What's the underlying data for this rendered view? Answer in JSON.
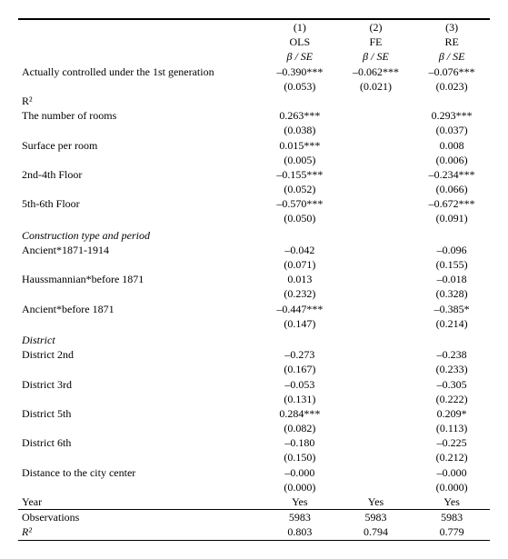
{
  "columns": {
    "c1": {
      "num": "(1)",
      "est": "OLS",
      "stat": "β / SE"
    },
    "c2": {
      "num": "(2)",
      "est": "FE",
      "stat": "β / SE"
    },
    "c3": {
      "num": "(3)",
      "est": "RE",
      "stat": "β / SE"
    }
  },
  "rows": {
    "r1": {
      "label": "Actually controlled under the 1st generation",
      "b1": "–0.390***",
      "s1": "(0.053)",
      "b2": "–0.062***",
      "s2": "(0.021)",
      "b3": "–0.076***",
      "s3": "(0.023)"
    },
    "r2": {
      "label": "R²",
      "v1": "0.803",
      "v2": "0.794",
      "v3": "0.779"
    },
    "r3": {
      "label": "The number of rooms",
      "b1": " 0.263***",
      "s1": "(0.038)",
      "b2": "",
      "s2": "",
      "b3": " 0.293***",
      "s3": "(0.037)"
    },
    "r4": {
      "label": "Surface per room",
      "b1": " 0.015***",
      "s1": "(0.005)",
      "b2": "",
      "s2": "",
      "b3": " 0.008",
      "s3": "(0.006)"
    },
    "r5": {
      "label": "2nd-4th Floor",
      "b1": "–0.155***",
      "s1": "(0.052)",
      "b2": "",
      "s2": "",
      "b3": "–0.234***",
      "s3": "(0.066)"
    },
    "r6": {
      "label": "5th-6th Floor",
      "b1": "–0.570***",
      "s1": "(0.050)",
      "b2": "",
      "s2": "",
      "b3": "–0.672***",
      "s3": "(0.091)"
    },
    "secA": {
      "label": "Construction type and period"
    },
    "r7": {
      "label": "Ancient*1871-1914",
      "b1": "–0.042",
      "s1": "(0.071)",
      "b2": "",
      "s2": "",
      "b3": "–0.096",
      "s3": "(0.155)"
    },
    "r8": {
      "label": "Haussmannian*before 1871",
      "b1": " 0.013",
      "s1": "(0.232)",
      "b2": "",
      "s2": "",
      "b3": "–0.018",
      "s3": "(0.328)"
    },
    "r9": {
      "label": "Ancient*before 1871",
      "b1": "–0.447***",
      "s1": "(0.147)",
      "b2": "",
      "s2": "",
      "b3": "–0.385*",
      "s3": "(0.214)"
    },
    "secB": {
      "label": "District"
    },
    "r10": {
      "label": "District 2nd",
      "b1": "–0.273",
      "s1": "(0.167)",
      "b2": "",
      "s2": "",
      "b3": "–0.238",
      "s3": "(0.233)"
    },
    "r11": {
      "label": "District 3rd",
      "b1": "–0.053",
      "s1": "(0.131)",
      "b2": "",
      "s2": "",
      "b3": "–0.305",
      "s3": "(0.222)"
    },
    "r12": {
      "label": "District 5th",
      "b1": " 0.284***",
      "s1": "(0.082)",
      "b2": "",
      "s2": "",
      "b3": " 0.209*",
      "s3": "(0.113)"
    },
    "r13": {
      "label": "District 6th",
      "b1": "–0.180",
      "s1": "(0.150)",
      "b2": "",
      "s2": "",
      "b3": "–0.225",
      "s3": "(0.212)"
    },
    "r14": {
      "label": "Distance to the city center",
      "b1": "–0.000",
      "s1": "(0.000)",
      "b2": "",
      "s2": "",
      "b3": "–0.000",
      "s3": "(0.000)"
    },
    "year": {
      "label": "Year",
      "v1": "Yes",
      "v2": "Yes",
      "v3": "Yes"
    },
    "obs": {
      "label": "Observations",
      "v1": "5983",
      "v2": "5983",
      "v3": "5983"
    }
  }
}
